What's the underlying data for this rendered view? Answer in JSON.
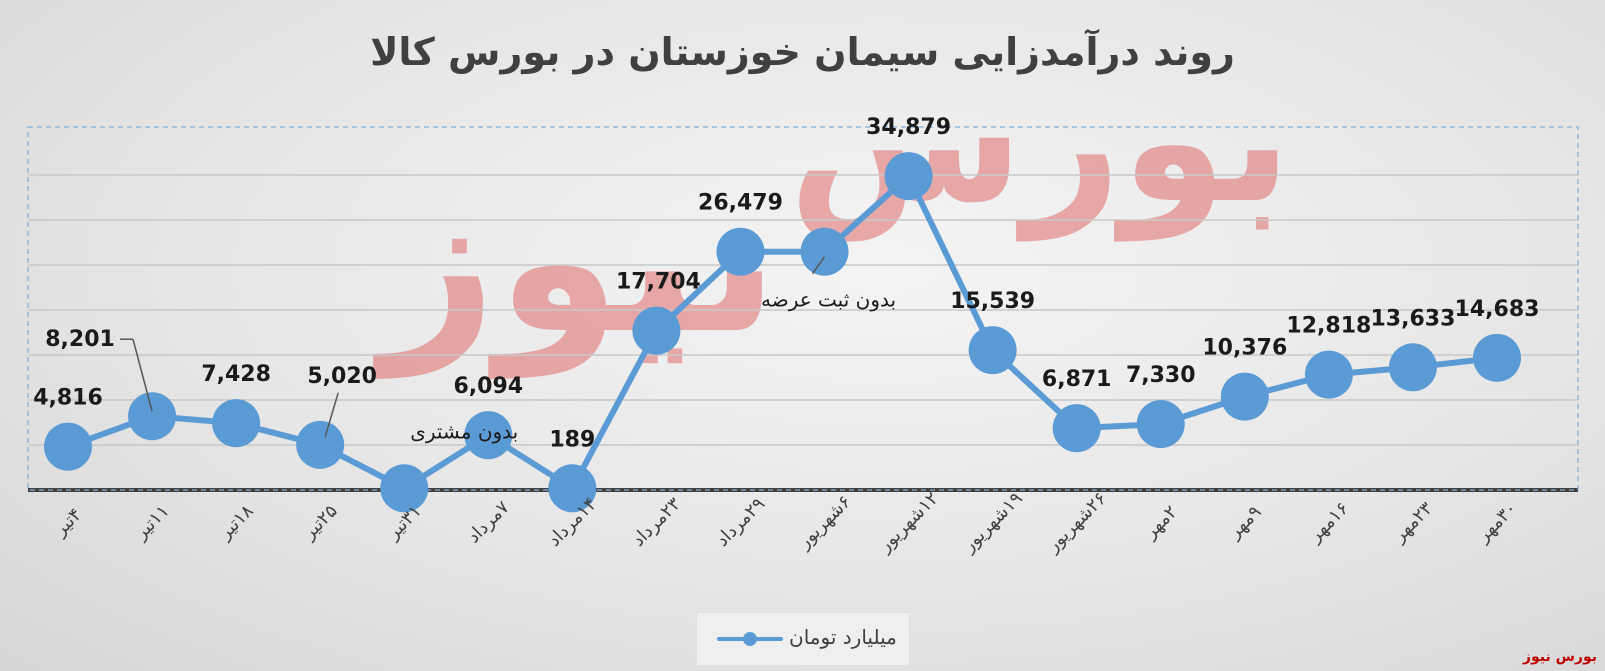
{
  "title": "روند درآمدزایی سیمان خوزستان در بورس کالا",
  "brand_footer": "بورس نیوز",
  "watermark": {
    "line1": "بورس",
    "line2": "نیوز",
    "color": "#e06060"
  },
  "colors": {
    "series": "#5b9bd5",
    "grid": "#c8c8c8",
    "axis": "#404040",
    "plot_border": "#7eb0e0"
  },
  "legend": {
    "label": "میلیارد تومان",
    "placement": "bottom-center"
  },
  "chart_data": {
    "type": "line",
    "categories": [
      "۴تیر",
      "۱۱تیر",
      "۱۸تیر",
      "۲۵تیر",
      "۳۱تیر",
      "۷مرداد",
      "۱۴مرداد",
      "۲۳مرداد",
      "۲۹مرداد",
      "۶شهریور",
      "۱۲شهریور",
      "۱۹شهریور",
      "۲۶شهریور",
      "۲مهر",
      "۹مهر",
      "۱۶مهر",
      "۲۳مهر",
      "۳۰مهر"
    ],
    "series": [
      {
        "name": "میلیارد تومان",
        "values": [
          4816,
          8201,
          7428,
          5020,
          189,
          6094,
          189,
          17704,
          26479,
          26479,
          34879,
          15539,
          6871,
          7330,
          10376,
          12818,
          13633,
          14683
        ]
      }
    ],
    "data_labels": [
      "4,816",
      "8,201",
      "7,428",
      "5,020",
      "",
      "6,094",
      "189",
      "17,704",
      "26,479",
      "",
      "34,879",
      "15,539",
      "6,871",
      "7,330",
      "10,376",
      "12,818",
      "13,633",
      "14,683"
    ],
    "annotations": [
      {
        "text": "بدون مشتری",
        "category": "۳۱تیر"
      },
      {
        "text": "بدون ثبت عرضه",
        "category": "۶شهریور"
      }
    ],
    "ylim": [
      0,
      40000
    ],
    "grid": true,
    "xlabel": "",
    "ylabel": ""
  }
}
